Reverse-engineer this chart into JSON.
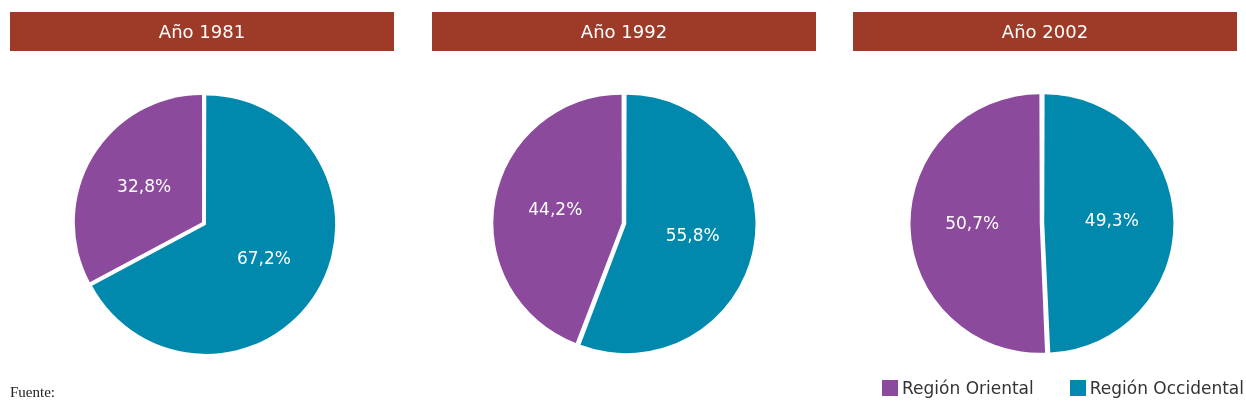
{
  "chart_data": [
    {
      "type": "pie",
      "title": "Año 1981",
      "categories": [
        null,
        null
      ],
      "values": [
        32.8,
        67.2
      ],
      "colors": [
        "#8b4a9c",
        "#0089ad"
      ],
      "value_labels": [
        "32,8%",
        "67,2%"
      ],
      "annotations": [
        "Fuente:"
      ]
    },
    {
      "type": "pie",
      "title": "Año 1992",
      "categories": [
        null,
        null
      ],
      "values": [
        44.2,
        55.8
      ],
      "colors": [
        "#8b4a9c",
        "#0089ad"
      ],
      "value_labels": [
        "44,2%",
        "55,8%"
      ]
    },
    {
      "type": "pie",
      "title": "Año 2002",
      "categories": [
        "Región Oriental",
        "Región Occidental"
      ],
      "values": [
        50.7,
        49.3
      ],
      "colors": [
        "#8b4a9c",
        "#0089ad"
      ],
      "value_labels": [
        "50,7%",
        "49,3%"
      ],
      "legend": "bottom right"
    }
  ]
}
